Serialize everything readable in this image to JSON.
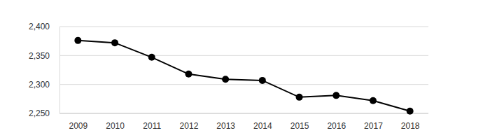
{
  "chart_data": {
    "type": "line",
    "categories": [
      "2009",
      "2010",
      "2011",
      "2012",
      "2013",
      "2014",
      "2015",
      "2016",
      "2017",
      "2018"
    ],
    "values": [
      2376,
      2372,
      2347,
      2318,
      2309,
      2307,
      2278,
      2281,
      2272,
      2254
    ],
    "color": "#000000",
    "marker": "circle",
    "ylim": [
      2250,
      2400
    ],
    "yticks": [
      {
        "value": 2250,
        "label": "2,250"
      },
      {
        "value": 2300,
        "label": "2,300"
      },
      {
        "value": 2350,
        "label": "2,350"
      },
      {
        "value": 2400,
        "label": "2,400"
      }
    ],
    "grid": true
  }
}
